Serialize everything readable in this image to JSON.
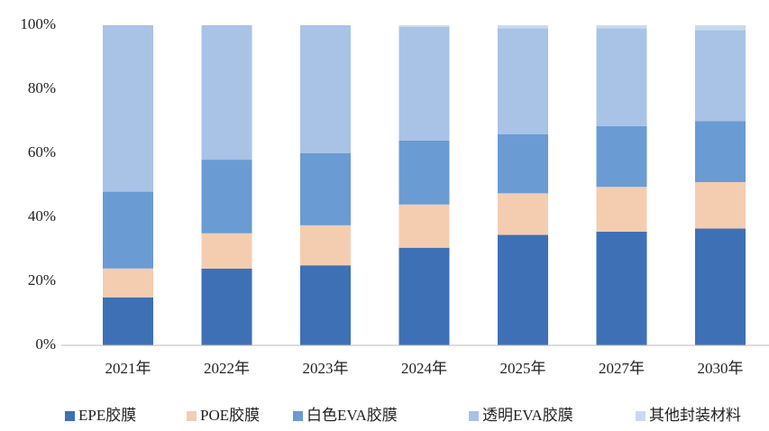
{
  "chart_data": {
    "type": "stacked_bar",
    "categories": [
      "2021年",
      "2022年",
      "2023年",
      "2024年",
      "2025年",
      "2027年",
      "2030年"
    ],
    "series": [
      {
        "name": "EPE胶膜",
        "color": "#3e70b6",
        "values": [
          15,
          24,
          25,
          30.5,
          34.5,
          35.5,
          36.5
        ]
      },
      {
        "name": "POE胶膜",
        "color": "#f4cdb0",
        "values": [
          9,
          11,
          12.5,
          13.5,
          13,
          14,
          14.5
        ]
      },
      {
        "name": "白色EVA胶膜",
        "color": "#6a9bd3",
        "values": [
          24,
          23,
          22.5,
          20,
          18.5,
          19,
          19
        ]
      },
      {
        "name": "透明EVA胶膜",
        "color": "#a8c3e6",
        "values": [
          52,
          42,
          40,
          35.5,
          33,
          30.5,
          28.5
        ]
      },
      {
        "name": "其他封装材料",
        "color": "#c8daf0",
        "values": [
          0,
          0,
          0,
          0.5,
          1,
          1,
          1.5
        ]
      }
    ],
    "ylim": [
      0,
      100
    ],
    "yticks": [
      {
        "value": 0,
        "label": "0%"
      },
      {
        "value": 20,
        "label": "20%"
      },
      {
        "value": 40,
        "label": "40%"
      },
      {
        "value": 60,
        "label": "60%"
      },
      {
        "value": 80,
        "label": "80%"
      },
      {
        "value": 100,
        "label": "100%"
      }
    ],
    "grid": false,
    "legend": "bottom"
  }
}
